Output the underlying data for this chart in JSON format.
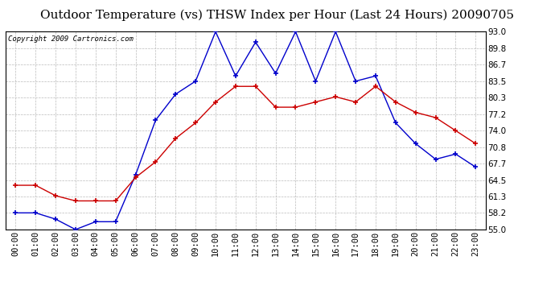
{
  "title": "Outdoor Temperature (vs) THSW Index per Hour (Last 24 Hours) 20090705",
  "copyright": "Copyright 2009 Cartronics.com",
  "x_labels": [
    "00:00",
    "01:00",
    "02:00",
    "03:00",
    "04:00",
    "05:00",
    "06:00",
    "07:00",
    "08:00",
    "09:00",
    "10:00",
    "11:00",
    "12:00",
    "13:00",
    "14:00",
    "15:00",
    "16:00",
    "17:00",
    "18:00",
    "19:00",
    "20:00",
    "21:00",
    "22:00",
    "23:00"
  ],
  "temp_data": [
    63.5,
    63.5,
    61.5,
    60.5,
    60.5,
    60.5,
    65.0,
    68.0,
    72.5,
    75.5,
    79.5,
    82.5,
    82.5,
    78.5,
    78.5,
    79.5,
    80.5,
    79.5,
    82.5,
    79.5,
    77.5,
    76.5,
    74.0,
    71.5
  ],
  "thsw_data": [
    58.2,
    58.2,
    57.0,
    55.0,
    56.5,
    56.5,
    65.5,
    76.0,
    81.0,
    83.5,
    93.0,
    84.5,
    91.0,
    85.0,
    93.0,
    83.5,
    93.0,
    83.5,
    84.5,
    75.5,
    71.5,
    68.5,
    69.5,
    67.0
  ],
  "temp_color": "#cc0000",
  "thsw_color": "#0000cc",
  "ylim_min": 55.0,
  "ylim_max": 93.0,
  "yticks": [
    55.0,
    58.2,
    61.3,
    64.5,
    67.7,
    70.8,
    74.0,
    77.2,
    80.3,
    83.5,
    86.7,
    89.8,
    93.0
  ],
  "background_color": "#ffffff",
  "grid_color": "#bbbbbb",
  "title_fontsize": 11,
  "tick_fontsize": 7.5,
  "copyright_fontsize": 6.5
}
